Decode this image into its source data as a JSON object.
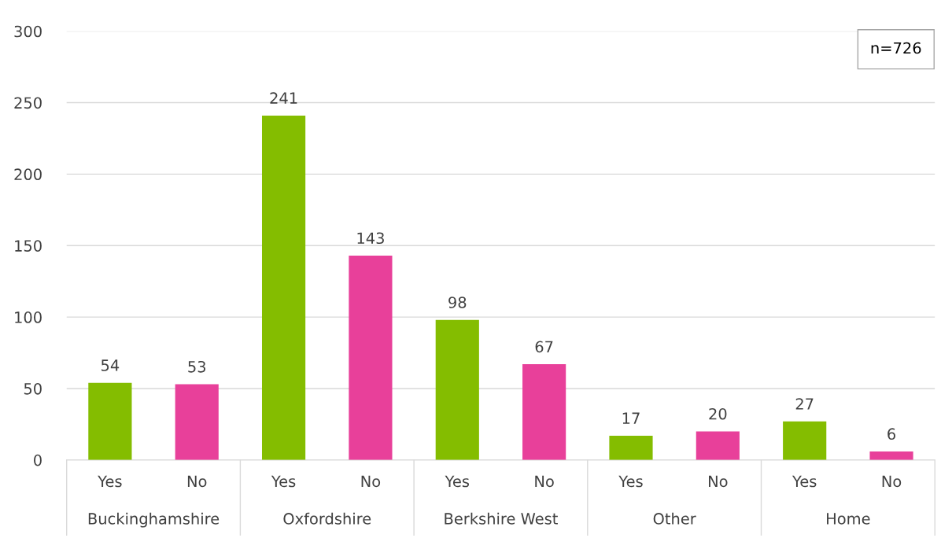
{
  "chart_data": {
    "type": "bar",
    "categories": [
      "Yes",
      "No",
      "Yes",
      "No",
      "Yes",
      "No",
      "Yes",
      "No",
      "Yes",
      "No"
    ],
    "values": [
      54,
      53,
      241,
      143,
      98,
      67,
      17,
      20,
      27,
      6
    ],
    "colors": [
      "#84bd00",
      "#e8409a",
      "#84bd00",
      "#e8409a",
      "#84bd00",
      "#e8409a",
      "#84bd00",
      "#e8409a",
      "#84bd00",
      "#e8409a"
    ],
    "ylim": [
      0,
      300
    ],
    "yticks": [
      0,
      50,
      100,
      150,
      200,
      250,
      300
    ],
    "grid": "y",
    "data_labels": true,
    "annotations": [
      "n=726",
      "Buckinghamshire",
      "Oxfordshire",
      "Berkshire West",
      "Other",
      "Home"
    ]
  }
}
